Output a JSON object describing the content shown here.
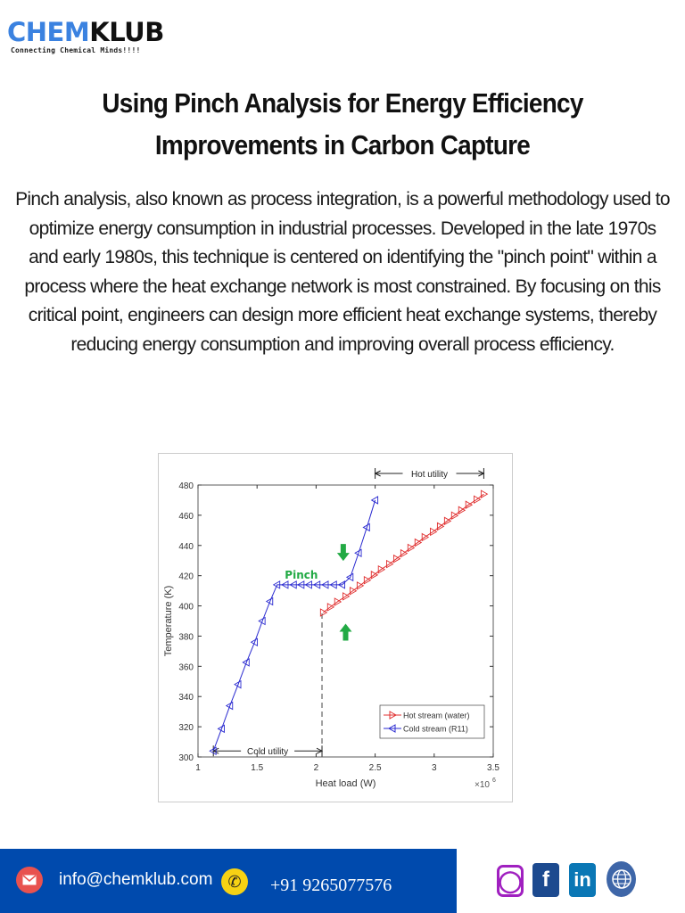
{
  "logo": {
    "part1": "CHEM",
    "part2": "KLUB",
    "tagline": "Connecting Chemical Minds!!!!"
  },
  "title": "Using Pinch Analysis for Energy Efficiency Improvements in Carbon Capture",
  "body": "Pinch analysis, also known as process integration, is a powerful methodology used to optimize energy consumption in industrial processes. Developed in the late 1970s and early 1980s, this technique is centered on identifying the \"pinch point\" within a process where the heat exchange network is most constrained. By focusing on this critical point, engineers can design more efficient heat exchange systems, thereby reducing energy consumption and improving overall process efficiency.",
  "chart_data": {
    "type": "line",
    "xlabel": "Heat load (W)",
    "ylabel": "Temperature (K)",
    "x_multiplier": "×10",
    "x_multiplier_exp": "6",
    "xlim": [
      1,
      3.5
    ],
    "ylim": [
      300,
      480
    ],
    "xticks": [
      "1",
      "1.5",
      "2",
      "2.5",
      "3",
      "3.5"
    ],
    "yticks": [
      "300",
      "320",
      "340",
      "360",
      "380",
      "400",
      "420",
      "440",
      "460",
      "480"
    ],
    "legend_position": "bottom-right",
    "series": [
      {
        "name": "Hot stream (water)",
        "color": "#e03030",
        "marker": "triangle-right",
        "x": [
          2.06,
          2.12,
          2.18,
          2.25,
          2.31,
          2.37,
          2.43,
          2.49,
          2.55,
          2.62,
          2.68,
          2.74,
          2.8,
          2.86,
          2.92,
          2.99,
          3.05,
          3.11,
          3.17,
          3.23,
          3.29,
          3.36,
          3.42
        ],
        "y": [
          395.6,
          399.2,
          402.7,
          406.3,
          409.9,
          413.4,
          417.0,
          420.5,
          424.1,
          427.7,
          431.2,
          434.8,
          438.4,
          441.9,
          445.5,
          449.1,
          452.6,
          456.2,
          459.8,
          463.3,
          466.9,
          470.4,
          474.0
        ]
      },
      {
        "name": "Cold stream (R11)",
        "color": "#2a2ad0",
        "marker": "triangle-left",
        "x": [
          1.13,
          1.2,
          1.27,
          1.34,
          1.41,
          1.48,
          1.545,
          1.61,
          1.67,
          1.74,
          1.81,
          1.875,
          1.94,
          2.01,
          2.08,
          2.15,
          2.22,
          2.29,
          2.36,
          2.43,
          2.5
        ],
        "y": [
          304,
          318.7,
          333.9,
          348,
          362.6,
          376,
          390,
          403,
          414,
          414,
          414,
          414,
          414,
          414,
          414,
          414,
          414,
          419,
          435,
          452,
          470
        ]
      }
    ],
    "annotations": {
      "pinch_label": "Pinch",
      "pinch_color": "#22aa44",
      "cold_utility": "Cold utility",
      "hot_utility": "Hot utility",
      "cold_utility_range": [
        1.13,
        2.05
      ],
      "hot_utility_range": [
        2.5,
        3.42
      ]
    }
  },
  "footer": {
    "email": "info@chemklub.com",
    "phone": "+91 9265077576",
    "bar_color": "#004aad",
    "social": [
      "instagram-icon",
      "facebook-icon",
      "linkedin-icon",
      "globe-icon"
    ]
  }
}
